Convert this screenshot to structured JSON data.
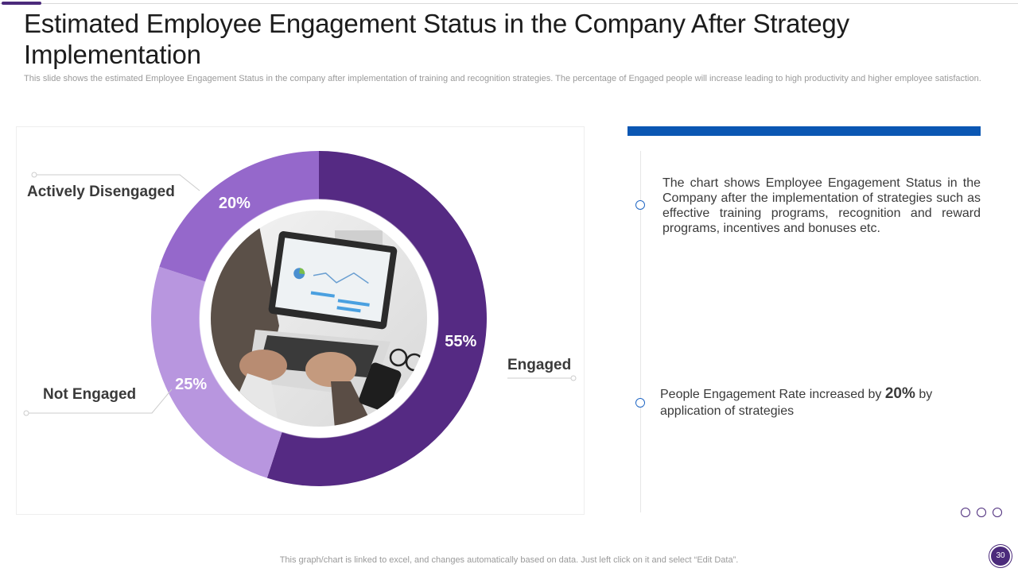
{
  "slide": {
    "title": "Estimated Employee Engagement Status in the Company After Strategy Implementation",
    "subtitle": "This slide shows the estimated Employee Engagement Status in the company after implementation of training and recognition strategies. The percentage of Engaged people will increase leading to high productivity and higher employee satisfaction.",
    "footer_note": "This graph/chart is linked to excel,  and changes automatically based on data. Just left click on it and select “Edit Data”.",
    "page_number": "30",
    "colors": {
      "accent_purple": "#4b2a7b",
      "accent_blue": "#0b57b3"
    }
  },
  "chart_data": {
    "type": "pie",
    "variant": "donut",
    "title": "",
    "categories": [
      "Engaged",
      "Not Engaged",
      "Actively Disengaged"
    ],
    "values": [
      55,
      25,
      20
    ],
    "value_labels": [
      "55%",
      "25%",
      "20%"
    ],
    "colors": [
      "#552a83",
      "#b896df",
      "#9568cb"
    ],
    "center_image": "laptop-photo"
  },
  "right_panel": {
    "point1": "The chart shows Employee Engagement Status in the Company after the implementation of strategies such as effective training programs, recognition and reward programs, incentives and bonuses etc.",
    "point2_prefix": "People Engagement Rate increased by ",
    "point2_highlight": "20%",
    "point2_suffix": " by application of strategies"
  }
}
